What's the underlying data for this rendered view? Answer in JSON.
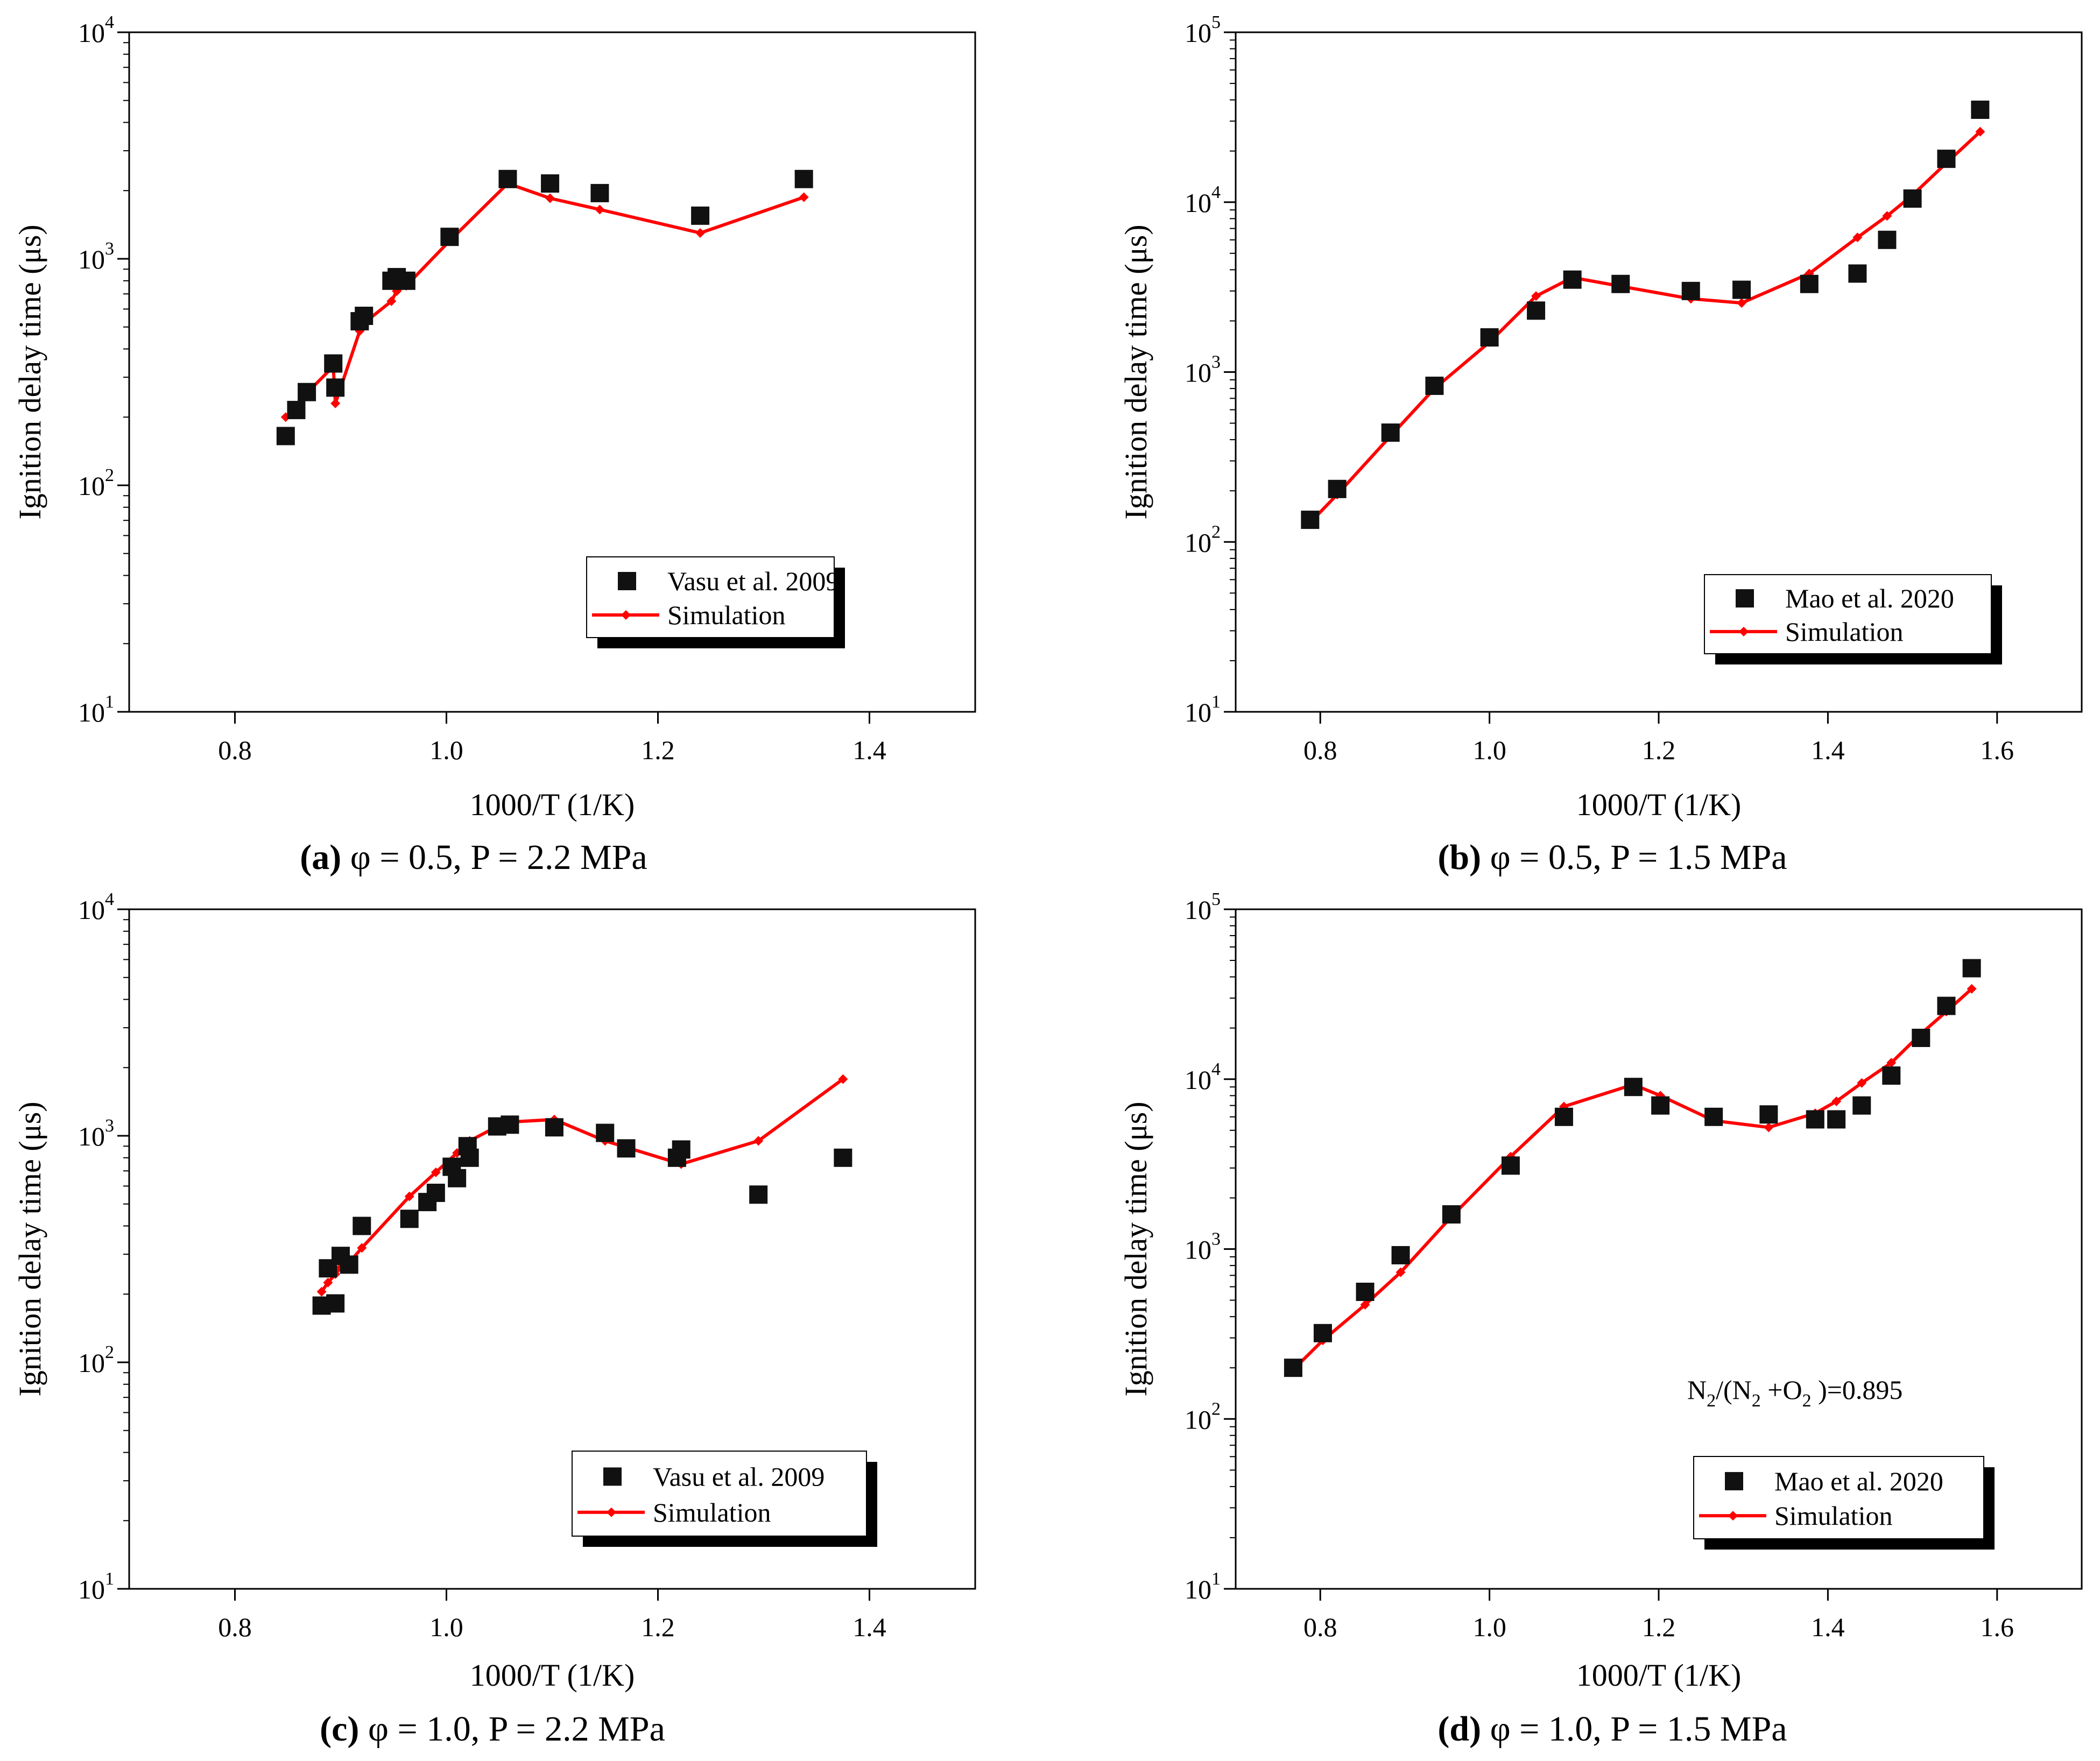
{
  "chart_data": [
    {
      "id": "a",
      "type": "scatter",
      "caption": {
        "letter": "(a)",
        "rest": " φ = 0.5, P = 2.2 MPa"
      },
      "xlabel": "1000/T (1/K)",
      "ylabel": "Ignition delay time (μs)",
      "xlim": [
        0.7,
        1.5
      ],
      "ylim": [
        10,
        10000
      ],
      "yscale": "log",
      "xticks": [
        0.8,
        1.0,
        1.2,
        1.4
      ],
      "xtick_labels": [
        "0.8",
        "1.0",
        "1.2",
        "1.4"
      ],
      "yticks": [
        {
          "base": "10",
          "exp": "1",
          "value": 10
        },
        {
          "base": "10",
          "exp": "2",
          "value": 100
        },
        {
          "base": "10",
          "exp": "3",
          "value": 1000
        },
        {
          "base": "10",
          "exp": "4",
          "value": 10000
        }
      ],
      "legend": {
        "position": "lower-right",
        "experiment": "Vasu et al. 2009",
        "simulation": "Simulation"
      },
      "series": [
        {
          "name": "Vasu et al. 2009",
          "kind": "markers",
          "color": "#111111",
          "x": [
            0.848,
            0.858,
            0.868,
            0.893,
            0.895,
            0.918,
            0.922,
            0.948,
            0.953,
            0.962,
            1.003,
            1.058,
            1.098,
            1.145,
            1.24,
            1.338
          ],
          "y": [
            165,
            215,
            258,
            345,
            270,
            530,
            560,
            800,
            830,
            800,
            1250,
            2250,
            2150,
            1950,
            1550,
            2250
          ]
        },
        {
          "name": "Simulation",
          "kind": "line",
          "color": "#ff0000",
          "x": [
            0.848,
            0.858,
            0.868,
            0.893,
            0.895,
            0.918,
            0.922,
            0.948,
            0.953,
            0.962,
            1.003,
            1.058,
            1.098,
            1.145,
            1.24,
            1.338
          ],
          "y": [
            200,
            220,
            255,
            335,
            230,
            480,
            520,
            650,
            720,
            760,
            1200,
            2150,
            1850,
            1650,
            1300,
            1870
          ]
        }
      ]
    },
    {
      "id": "b",
      "type": "scatter",
      "caption": {
        "letter": "(b)",
        "rest": " φ = 0.5, P = 1.5 MPa"
      },
      "xlabel": "1000/T (1/K)",
      "ylabel": "Ignition delay time (μs)",
      "xlim": [
        0.7,
        1.7
      ],
      "ylim": [
        10,
        100000
      ],
      "yscale": "log",
      "xticks": [
        0.8,
        1.0,
        1.2,
        1.4,
        1.6
      ],
      "xtick_labels": [
        "0.8",
        "1.0",
        "1.2",
        "1.4",
        "1.6"
      ],
      "yticks": [
        {
          "base": "10",
          "exp": "1",
          "value": 10
        },
        {
          "base": "10",
          "exp": "2",
          "value": 100
        },
        {
          "base": "10",
          "exp": "3",
          "value": 1000
        },
        {
          "base": "10",
          "exp": "4",
          "value": 10000
        },
        {
          "base": "10",
          "exp": "5",
          "value": 100000
        }
      ],
      "legend": {
        "position": "lower-right",
        "experiment": "Mao et al. 2020",
        "simulation": "Simulation"
      },
      "series": [
        {
          "name": "Mao et al. 2020",
          "kind": "markers",
          "color": "#111111",
          "x": [
            0.788,
            0.82,
            0.883,
            0.935,
            1.0,
            1.055,
            1.098,
            1.155,
            1.238,
            1.298,
            1.378,
            1.435,
            1.47,
            1.5,
            1.54,
            1.58
          ],
          "y": [
            135,
            205,
            440,
            830,
            1600,
            2300,
            3500,
            3300,
            3000,
            3050,
            3300,
            3800,
            6000,
            10500,
            18000,
            35000
          ]
        },
        {
          "name": "Simulation",
          "kind": "line",
          "color": "#ff0000",
          "x": [
            0.788,
            0.82,
            0.883,
            0.935,
            1.0,
            1.055,
            1.098,
            1.155,
            1.238,
            1.298,
            1.378,
            1.435,
            1.47,
            1.5,
            1.54,
            1.58
          ],
          "y": [
            130,
            190,
            420,
            800,
            1500,
            2800,
            3600,
            3200,
            2700,
            2550,
            3800,
            6200,
            8300,
            11000,
            17000,
            26000
          ]
        }
      ]
    },
    {
      "id": "c",
      "type": "scatter",
      "caption": {
        "letter": "(c)",
        "rest": " φ = 1.0, P = 2.2 MPa"
      },
      "xlabel": "1000/T (1/K)",
      "ylabel": "Ignition delay time (μs)",
      "xlim": [
        0.7,
        1.5
      ],
      "ylim": [
        10,
        10000
      ],
      "yscale": "log",
      "xticks": [
        0.8,
        1.0,
        1.2,
        1.4
      ],
      "xtick_labels": [
        "0.8",
        "1.0",
        "1.2",
        "1.4"
      ],
      "yticks": [
        {
          "base": "10",
          "exp": "1",
          "value": 10
        },
        {
          "base": "10",
          "exp": "2",
          "value": 100
        },
        {
          "base": "10",
          "exp": "3",
          "value": 1000
        },
        {
          "base": "10",
          "exp": "4",
          "value": 10000
        }
      ],
      "legend": {
        "position": "lower-right",
        "experiment": "Vasu et al. 2009",
        "simulation": "Simulation"
      },
      "series": [
        {
          "name": "Vasu et al. 2009",
          "kind": "markers",
          "color": "#111111",
          "x": [
            0.882,
            0.888,
            0.895,
            0.9,
            0.908,
            0.92,
            0.965,
            0.982,
            0.99,
            1.005,
            1.01,
            1.02,
            1.022,
            1.048,
            1.06,
            1.102,
            1.15,
            1.17,
            1.218,
            1.222,
            1.295,
            1.375
          ],
          "y": [
            178,
            260,
            182,
            295,
            270,
            400,
            430,
            510,
            560,
            730,
            650,
            900,
            800,
            1100,
            1120,
            1090,
            1030,
            880,
            800,
            870,
            550,
            800
          ]
        },
        {
          "name": "Simulation",
          "kind": "line",
          "color": "#ff0000",
          "x": [
            0.882,
            0.888,
            0.895,
            0.9,
            0.908,
            0.92,
            0.965,
            0.99,
            1.01,
            1.022,
            1.048,
            1.06,
            1.102,
            1.15,
            1.222,
            1.295,
            1.375
          ],
          "y": [
            205,
            225,
            245,
            262,
            275,
            320,
            540,
            690,
            840,
            950,
            1100,
            1150,
            1180,
            950,
            750,
            950,
            1780
          ]
        }
      ]
    },
    {
      "id": "d",
      "type": "scatter",
      "caption": {
        "letter": "(d)",
        "rest": " φ = 1.0, P = 1.5 MPa"
      },
      "xlabel": "1000/T (1/K)",
      "ylabel": "Ignition delay time (μs)",
      "xlim": [
        0.7,
        1.7
      ],
      "ylim": [
        10,
        100000
      ],
      "yscale": "log",
      "xticks": [
        0.8,
        1.0,
        1.2,
        1.4,
        1.6
      ],
      "xtick_labels": [
        "0.8",
        "1.0",
        "1.2",
        "1.4",
        "1.6"
      ],
      "yticks": [
        {
          "base": "10",
          "exp": "1",
          "value": 10
        },
        {
          "base": "10",
          "exp": "2",
          "value": 100
        },
        {
          "base": "10",
          "exp": "3",
          "value": 1000
        },
        {
          "base": "10",
          "exp": "4",
          "value": 10000
        },
        {
          "base": "10",
          "exp": "5",
          "value": 100000
        }
      ],
      "legend": {
        "position": "lower-right",
        "experiment": "Mao et al. 2020",
        "simulation": "Simulation"
      },
      "annotation": {
        "n1": "N",
        "s1": "2",
        "mid": "/(N",
        "s2": "2",
        "mid2": " +O",
        "s3": "2",
        "end": " )=0.895"
      },
      "series": [
        {
          "name": "Mao et al. 2020",
          "kind": "markers",
          "color": "#111111",
          "x": [
            0.768,
            0.803,
            0.853,
            0.895,
            0.955,
            1.025,
            1.088,
            1.17,
            1.202,
            1.265,
            1.33,
            1.385,
            1.41,
            1.44,
            1.475,
            1.51,
            1.54,
            1.57
          ],
          "y": [
            200,
            320,
            560,
            920,
            1600,
            3100,
            6000,
            9000,
            7000,
            6000,
            6200,
            5800,
            5800,
            7000,
            10500,
            17500,
            27000,
            45000
          ]
        },
        {
          "name": "Simulation",
          "kind": "line",
          "color": "#ff0000",
          "x": [
            0.768,
            0.803,
            0.853,
            0.895,
            0.955,
            1.025,
            1.088,
            1.17,
            1.202,
            1.265,
            1.33,
            1.385,
            1.41,
            1.44,
            1.475,
            1.51,
            1.54,
            1.57
          ],
          "y": [
            195,
            290,
            470,
            730,
            1550,
            3500,
            6900,
            9300,
            8000,
            5700,
            5200,
            6300,
            7400,
            9500,
            12500,
            18500,
            25000,
            34000
          ]
        }
      ]
    }
  ]
}
